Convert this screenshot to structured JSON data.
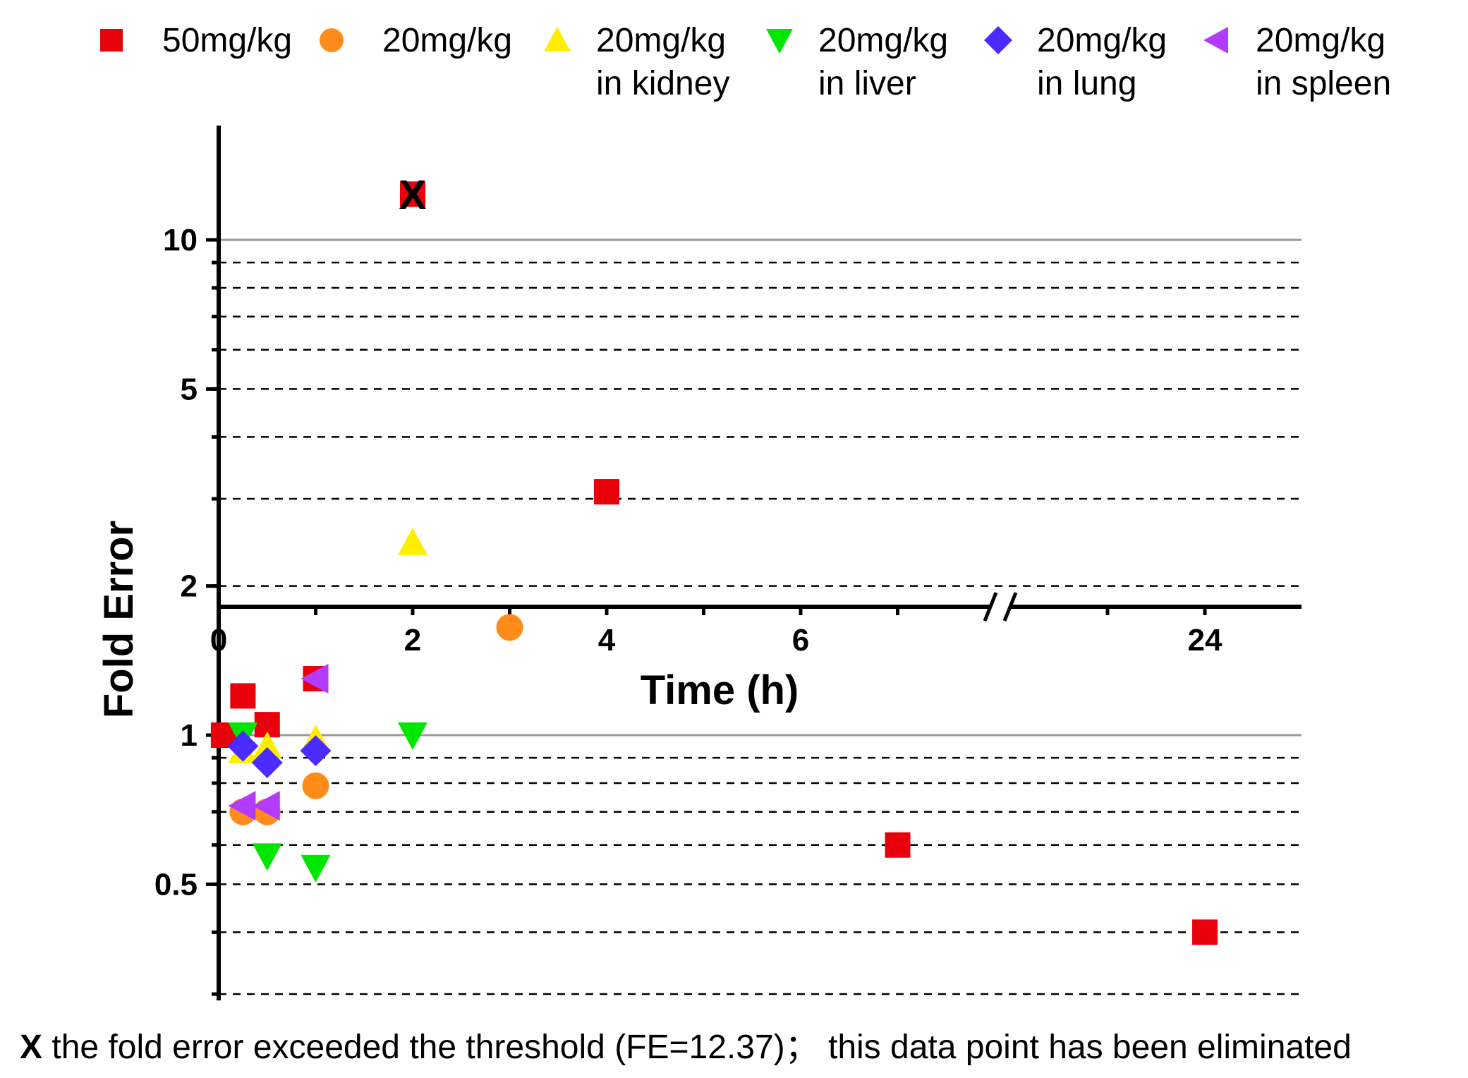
{
  "chart_data": {
    "type": "scatter",
    "title": "",
    "xlabel": "Time (h)",
    "ylabel": "Fold Error",
    "y_scale": "log",
    "ylim": [
      0.3,
      15
    ],
    "x_axis_break": "between 7 and 24",
    "x_ticks": [
      {
        "value": 0,
        "label": "0"
      },
      {
        "value": 2,
        "label": "2"
      },
      {
        "value": 4,
        "label": "4"
      },
      {
        "value": 6,
        "label": "6"
      },
      {
        "value": 24,
        "label": "24"
      }
    ],
    "y_ticks": [
      {
        "value": 0.5,
        "label": "0.5"
      },
      {
        "value": 1,
        "label": "1"
      },
      {
        "value": 2,
        "label": "2"
      },
      {
        "value": 5,
        "label": "5"
      },
      {
        "value": 10,
        "label": "10"
      }
    ],
    "solid_reference_lines": [
      1,
      10
    ],
    "dashed_reference_lines": [
      0.3,
      0.4,
      0.5,
      0.6,
      0.7,
      0.8,
      0.9,
      2,
      3,
      4,
      5,
      6,
      7,
      8,
      9
    ],
    "series": [
      {
        "name": "50mg/kg",
        "marker": "square",
        "color": "#e8000b",
        "points": [
          {
            "x": 0.05,
            "y": 1.0
          },
          {
            "x": 0.25,
            "y": 1.2
          },
          {
            "x": 0.5,
            "y": 1.05
          },
          {
            "x": 1,
            "y": 1.3
          },
          {
            "x": 4,
            "y": 3.1
          },
          {
            "x": 7,
            "y": 0.6
          },
          {
            "x": 24,
            "y": 0.4
          },
          {
            "x": 2,
            "y": 12.37,
            "excluded": true
          }
        ]
      },
      {
        "name": "20mg/kg",
        "marker": "circle",
        "color": "#ff8c1a",
        "points": [
          {
            "x": 0.25,
            "y": 0.7
          },
          {
            "x": 0.5,
            "y": 0.7
          },
          {
            "x": 1,
            "y": 0.79
          },
          {
            "x": 3,
            "y": 1.65
          }
        ]
      },
      {
        "name": "20mg/kg in kidney",
        "marker": "triangle-up",
        "color": "#ffee00",
        "points": [
          {
            "x": 0.25,
            "y": 0.93
          },
          {
            "x": 0.5,
            "y": 0.95
          },
          {
            "x": 1,
            "y": 0.98
          },
          {
            "x": 2,
            "y": 2.45
          }
        ]
      },
      {
        "name": "20mg/kg in liver",
        "marker": "triangle-down",
        "color": "#00e600",
        "points": [
          {
            "x": 0.25,
            "y": 1.0
          },
          {
            "x": 0.5,
            "y": 0.57
          },
          {
            "x": 1,
            "y": 0.54
          },
          {
            "x": 2,
            "y": 1.0
          }
        ]
      },
      {
        "name": "20mg/kg in lung",
        "marker": "diamond",
        "color": "#4b2bff",
        "points": [
          {
            "x": 0.25,
            "y": 0.95
          },
          {
            "x": 0.5,
            "y": 0.88
          },
          {
            "x": 1,
            "y": 0.93
          }
        ]
      },
      {
        "name": "20mg/kg in spleen",
        "marker": "triangle-left",
        "color": "#b23bff",
        "points": [
          {
            "x": 0.25,
            "y": 0.72
          },
          {
            "x": 0.5,
            "y": 0.72
          },
          {
            "x": 1,
            "y": 1.3
          }
        ]
      }
    ],
    "legend": {
      "position": "top",
      "entries": [
        {
          "line1": "50mg/kg",
          "line2": ""
        },
        {
          "line1": "20mg/kg",
          "line2": ""
        },
        {
          "line1": "20mg/kg",
          "line2": "in kidney"
        },
        {
          "line1": "20mg/kg",
          "line2": "in liver"
        },
        {
          "line1": "20mg/kg",
          "line2": "in lung"
        },
        {
          "line1": "20mg/kg",
          "line2": "in spleen"
        }
      ]
    },
    "excluded_marker": "X",
    "note": {
      "symbol": "X",
      "text": " the fold error exceeded the threshold (FE=12.37)； this data point has been eliminated"
    }
  }
}
